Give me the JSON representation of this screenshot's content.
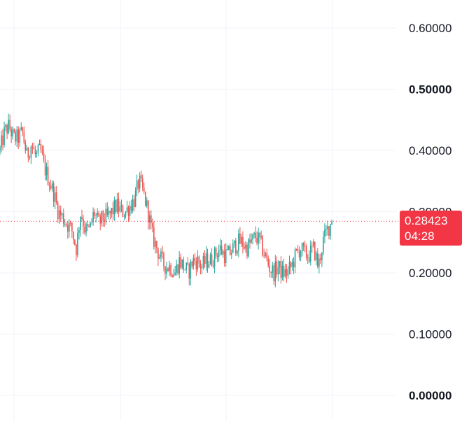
{
  "chart_data": {
    "type": "candlestick",
    "ylim": [
      0.0,
      0.64
    ],
    "y_ticks": [
      {
        "value": 0.0,
        "label": "0.00000",
        "bold": true
      },
      {
        "value": 0.1,
        "label": "0.10000",
        "bold": false
      },
      {
        "value": 0.2,
        "label": "0.20000",
        "bold": false
      },
      {
        "value": 0.3,
        "label": "0.30000",
        "bold": false
      },
      {
        "value": 0.4,
        "label": "0.40000",
        "bold": false
      },
      {
        "value": 0.5,
        "label": "0.50000",
        "bold": true
      },
      {
        "value": 0.6,
        "label": "0.60000",
        "bold": false
      }
    ],
    "grid": true,
    "current_price": {
      "value": 0.28423,
      "label": "0.28423",
      "countdown": "04:28"
    },
    "colors": {
      "up": "#26a69a",
      "down": "#ef5350",
      "price_tag": "#f23645",
      "grid": "#f0f3fa"
    },
    "close_path": [
      0.4,
      0.43,
      0.44,
      0.42,
      0.42,
      0.43,
      0.39,
      0.41,
      0.39,
      0.4,
      0.37,
      0.35,
      0.33,
      0.3,
      0.29,
      0.28,
      0.27,
      0.24,
      0.3,
      0.27,
      0.27,
      0.3,
      0.28,
      0.29,
      0.29,
      0.3,
      0.31,
      0.3,
      0.3,
      0.31,
      0.32,
      0.35,
      0.33,
      0.3,
      0.26,
      0.24,
      0.22,
      0.21,
      0.21,
      0.2,
      0.22,
      0.21,
      0.2,
      0.22,
      0.22,
      0.21,
      0.22,
      0.22,
      0.23,
      0.24,
      0.23,
      0.23,
      0.24,
      0.25,
      0.25,
      0.24,
      0.25,
      0.26,
      0.25,
      0.23,
      0.21,
      0.2,
      0.21,
      0.2,
      0.2,
      0.21,
      0.23,
      0.24,
      0.23,
      0.23,
      0.24,
      0.21,
      0.25,
      0.27,
      0.284
    ]
  }
}
